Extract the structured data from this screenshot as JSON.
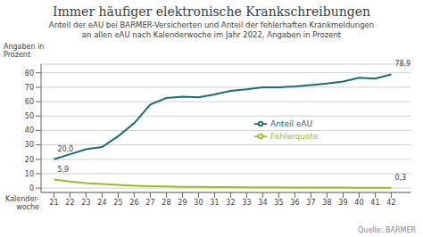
{
  "chart_data": {
    "type": "line",
    "title": "Immer häufiger elektronische Krankschreibungen",
    "subtitle": "Anteil der eAU bei BARMER-Versicherten und Anteil der fehlerhaften Krankmeldungen\nan allen eAU nach Kalenderwoche im Jahr 2022, Angaben in Prozent",
    "x_label": "Kalender-\nwoche",
    "y_label": "Angaben in\nProzent",
    "source": "Quelle: BARMER",
    "x": [
      21,
      22,
      23,
      24,
      25,
      26,
      27,
      28,
      29,
      30,
      31,
      32,
      33,
      34,
      35,
      36,
      37,
      38,
      39,
      40,
      41,
      42
    ],
    "series": [
      {
        "name": "Anteil eAU",
        "color": "#1b6b76",
        "values": [
          20.0,
          23.5,
          27.0,
          28.5,
          36.0,
          45.0,
          58.0,
          62.5,
          63.5,
          63.0,
          65.0,
          67.5,
          68.5,
          70.0,
          70.0,
          70.5,
          71.5,
          72.5,
          74.0,
          76.5,
          76.0,
          78.9
        ],
        "value_labels": [
          "20,0",
          null,
          null,
          null,
          null,
          null,
          null,
          null,
          null,
          null,
          null,
          null,
          null,
          null,
          null,
          null,
          null,
          null,
          null,
          null,
          null,
          "78,9"
        ]
      },
      {
        "name": "Fehlerquote",
        "color": "#95c11f",
        "values": [
          5.9,
          4.5,
          3.5,
          2.8,
          2.2,
          1.7,
          1.4,
          1.1,
          0.9,
          0.8,
          0.7,
          0.65,
          0.6,
          0.55,
          0.5,
          0.45,
          0.42,
          0.38,
          0.35,
          0.32,
          0.3,
          0.3
        ],
        "value_labels": [
          "5,9",
          null,
          null,
          null,
          null,
          null,
          null,
          null,
          null,
          null,
          null,
          null,
          null,
          null,
          null,
          null,
          null,
          null,
          null,
          null,
          null,
          "0,3"
        ]
      }
    ],
    "xlim": [
      20.2,
      43.2
    ],
    "xticks": [
      21,
      22,
      23,
      24,
      25,
      26,
      27,
      28,
      29,
      30,
      31,
      32,
      33,
      34,
      35,
      36,
      37,
      38,
      39,
      40,
      41,
      42
    ],
    "ylim": [
      -3,
      86
    ],
    "yticks": [
      0,
      10,
      20,
      30,
      40,
      50,
      60,
      70,
      80
    ],
    "grid": true,
    "legend": "center"
  }
}
